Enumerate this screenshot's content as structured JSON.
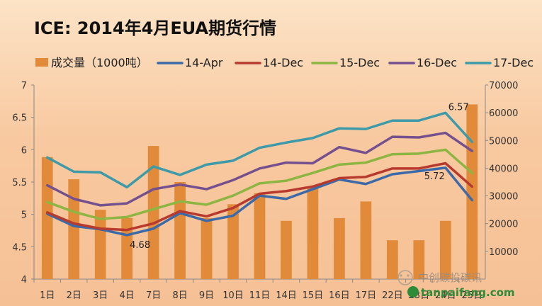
{
  "chart_data": {
    "type": "bar+line",
    "title": "ICE: 2014年4月EUA期货行情",
    "categories": [
      "1日",
      "2日",
      "3日",
      "4日",
      "7日",
      "8日",
      "9日",
      "10日",
      "11日",
      "14日",
      "15日",
      "16日",
      "17日",
      "22日",
      "23日",
      "24日",
      "25日"
    ],
    "bar_series": {
      "name": "成交量（1000吨）",
      "color": "#e08a3a",
      "axis": "right",
      "values": [
        44000,
        36000,
        25000,
        22000,
        48000,
        35000,
        22000,
        27000,
        31000,
        21000,
        33000,
        22000,
        28000,
        14000,
        14000,
        21000,
        63000
      ]
    },
    "line_series": [
      {
        "name": "14-Apr",
        "color": "#3c6aa8",
        "values": [
          5.01,
          4.82,
          4.77,
          4.68,
          4.78,
          5.02,
          4.9,
          4.98,
          5.29,
          5.24,
          5.39,
          5.54,
          5.47,
          5.62,
          5.67,
          5.72,
          5.22
        ]
      },
      {
        "name": "14-Dec",
        "color": "#b83a2e",
        "values": [
          5.03,
          4.86,
          4.78,
          4.76,
          4.86,
          5.05,
          4.97,
          5.1,
          5.32,
          5.36,
          5.43,
          5.56,
          5.58,
          5.71,
          5.71,
          5.79,
          5.43
        ]
      },
      {
        "name": "15-Dec",
        "color": "#8db542",
        "values": [
          5.19,
          5.04,
          4.93,
          4.96,
          5.08,
          5.2,
          5.15,
          5.29,
          5.48,
          5.52,
          5.64,
          5.77,
          5.8,
          5.93,
          5.94,
          6.0,
          5.64
        ]
      },
      {
        "name": "16-Dec",
        "color": "#74508e",
        "values": [
          5.45,
          5.24,
          5.14,
          5.17,
          5.39,
          5.46,
          5.39,
          5.53,
          5.71,
          5.8,
          5.79,
          6.04,
          5.95,
          6.2,
          6.19,
          6.26,
          5.98
        ]
      },
      {
        "name": "17-Dec",
        "color": "#3d9aa8",
        "values": [
          5.88,
          5.66,
          5.65,
          5.42,
          5.74,
          5.61,
          5.77,
          5.83,
          6.03,
          6.11,
          6.18,
          6.33,
          6.32,
          6.45,
          6.45,
          6.57,
          6.12
        ]
      }
    ],
    "left_axis": {
      "min": 4,
      "max": 7,
      "ticks": [
        "4",
        "4.5",
        "5",
        "5.5",
        "6",
        "6.5",
        "7"
      ]
    },
    "right_axis": {
      "min": 0,
      "max": 70000,
      "ticks": [
        "10000",
        "20000",
        "30000",
        "40000",
        "50000",
        "60000",
        "70000"
      ]
    },
    "annotations": [
      {
        "text": "4.68",
        "category_index": 3,
        "value": 4.68
      },
      {
        "text": "5.72",
        "category_index": 15,
        "value": 5.72
      },
      {
        "text": "6.57",
        "category_index": 15,
        "value": 6.57
      }
    ],
    "legend_position": "top",
    "grid": false
  },
  "watermark": {
    "text": "中创碳投碳讯",
    "url": "tanpaifang.com"
  }
}
